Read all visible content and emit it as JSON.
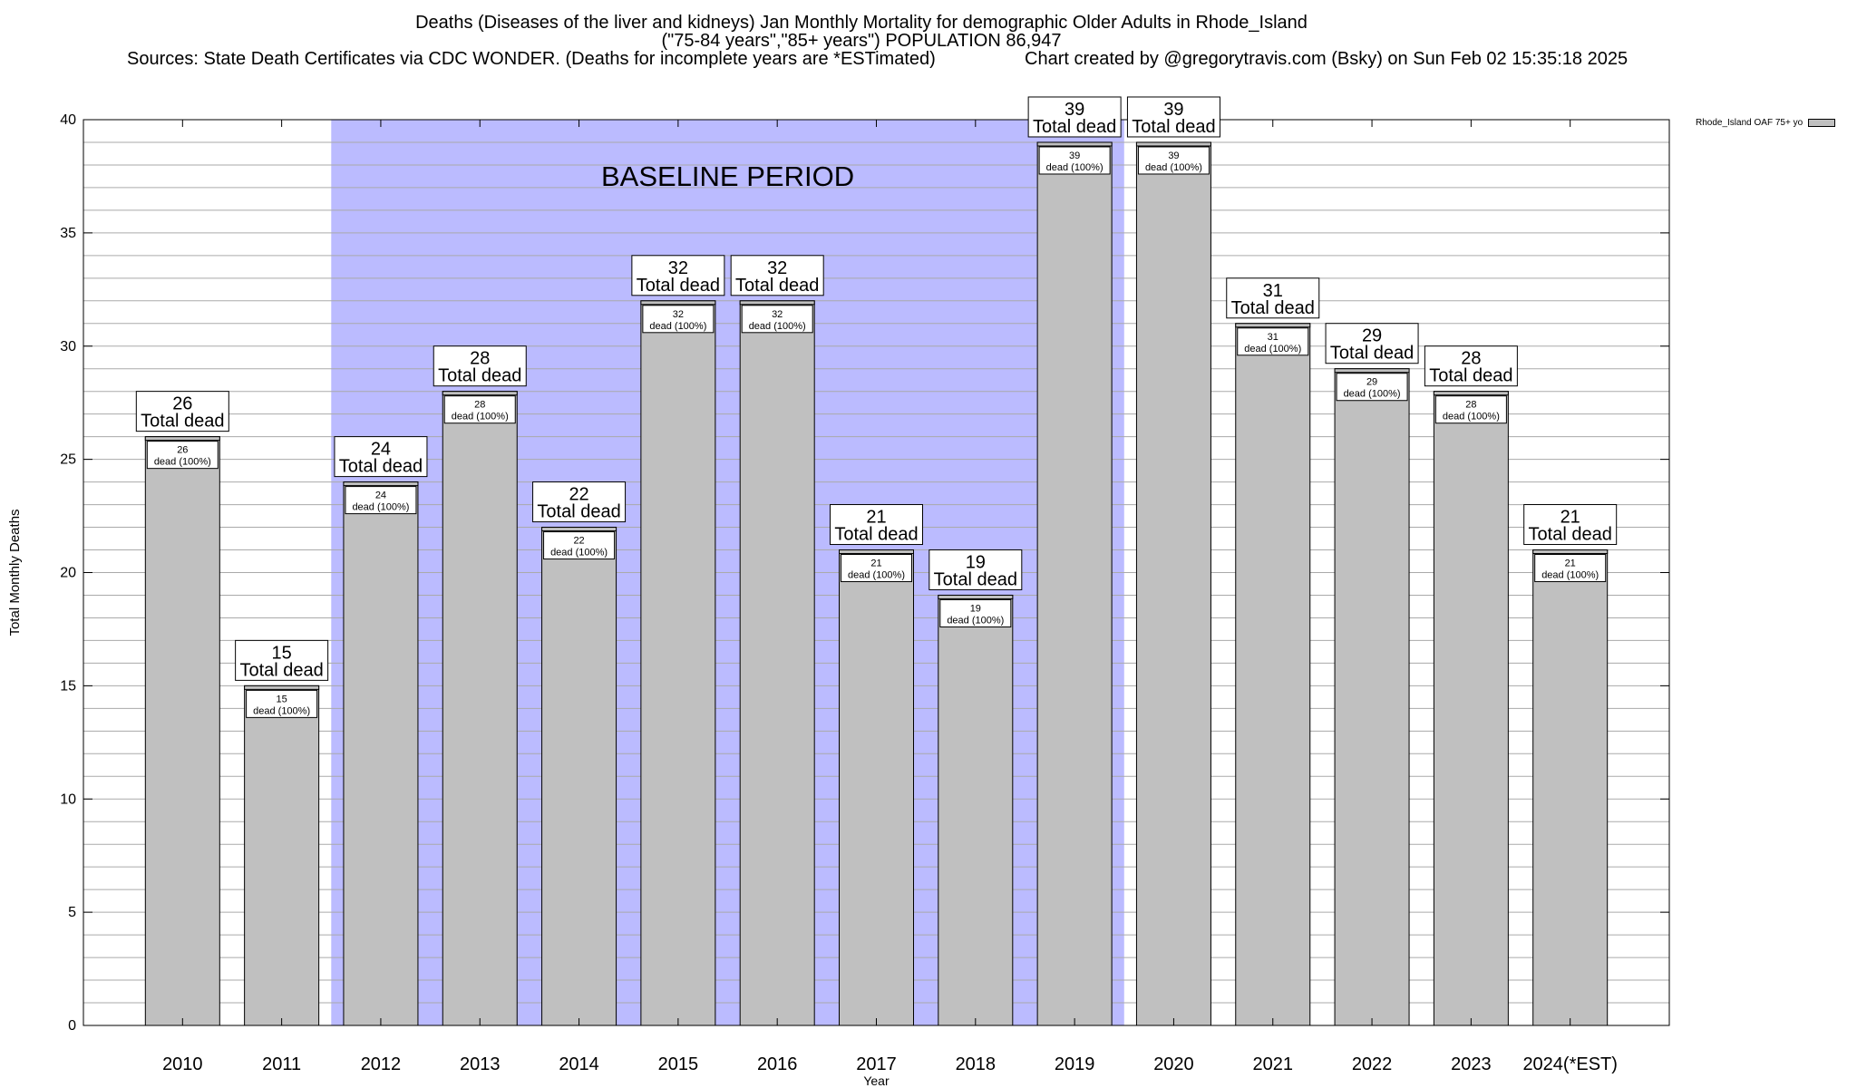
{
  "chart_data": {
    "type": "bar",
    "title_lines": [
      "Deaths (Diseases of the liver and kidneys) Jan Monthly Mortality for demographic Older Adults in Rhode_Island",
      "(\"75-84 years\",\"85+ years\") POPULATION 86,947"
    ],
    "source_text": "Sources: State Death Certificates via CDC WONDER. (Deaths for incomplete years are *ESTimated)",
    "credit_text": "Chart created by @gregorytravis.com (Bsky) on Sun Feb 02 15:35:18 2025",
    "xlabel": "Year",
    "ylabel": "Total Monthly Deaths",
    "ylim": [
      0,
      40
    ],
    "y_ticks": [
      0,
      5,
      10,
      15,
      20,
      25,
      30,
      35,
      40
    ],
    "grid": true,
    "categories": [
      "2010",
      "2011",
      "2012",
      "2013",
      "2014",
      "2015",
      "2016",
      "2017",
      "2018",
      "2019",
      "2020",
      "2021",
      "2022",
      "2023",
      "2024(*EST)"
    ],
    "values": [
      26,
      15,
      24,
      28,
      22,
      32,
      32,
      21,
      19,
      39,
      39,
      31,
      29,
      28,
      21
    ],
    "bar_top_label": "Total dead",
    "bar_inner_label": "dead (100%)",
    "baseline_label": "BASELINE PERIOD",
    "baseline_range": [
      "2012",
      "2019"
    ],
    "legend": [
      "Rhode_Island OAF 75+ yo"
    ],
    "legend_placement": "top-right",
    "colors": {
      "bar": "#c0c0c0",
      "baseline": "#bbbbff"
    }
  }
}
